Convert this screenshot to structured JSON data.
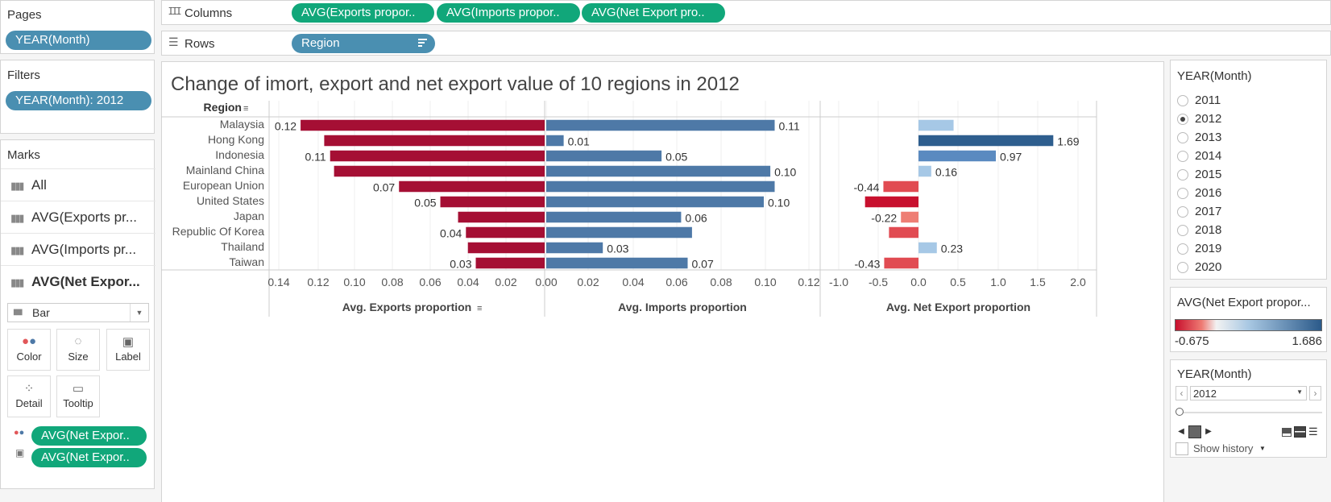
{
  "pages": {
    "header": "Pages",
    "pill": "YEAR(Month)"
  },
  "filters": {
    "header": "Filters",
    "pill": "YEAR(Month): 2012"
  },
  "marks": {
    "header": "Marks",
    "rows": [
      "All",
      "AVG(Exports pr...",
      "AVG(Imports pr...",
      "AVG(Net Expor..."
    ],
    "type": "Bar",
    "cards": [
      "Color",
      "Size",
      "Label",
      "Detail",
      "Tooltip"
    ],
    "pills": [
      "AVG(Net Expor..",
      "AVG(Net Expor.."
    ]
  },
  "shelves": {
    "columns_label": "Columns",
    "columns_pills": [
      "AVG(Exports propor..",
      "AVG(Imports propor..",
      "AVG(Net Export pro.."
    ],
    "rows_label": "Rows",
    "rows_pill": "Region"
  },
  "chart_data": {
    "type": "bar",
    "title": "Change of imort, export and net export value of  10  regions in 2012",
    "row_header": "Region",
    "categories": [
      "Malaysia",
      "Hong Kong",
      "Indonesia",
      "Mainland China",
      "European Union",
      "United States",
      "Japan",
      "Republic Of Korea",
      "Thailand",
      "Taiwan"
    ],
    "series": [
      {
        "name": "Avg. Exports proportion",
        "values": [
          0.124,
          0.112,
          0.109,
          0.107,
          0.074,
          0.053,
          0.044,
          0.04,
          0.039,
          0.035
        ],
        "labels": [
          "0.12",
          "",
          "0.11",
          "",
          "0.07",
          "0.05",
          "",
          "0.04",
          "",
          "0.03"
        ],
        "xlim": [
          0,
          0.14
        ],
        "ticks": [
          "0.14",
          "0.12",
          "0.10",
          "0.08",
          "0.06",
          "0.04",
          "0.02"
        ],
        "reversed": true
      },
      {
        "name": "Avg. Imports proportion",
        "values": [
          0.105,
          0.008,
          0.053,
          0.103,
          0.105,
          0.1,
          0.062,
          0.067,
          0.026,
          0.065
        ],
        "labels": [
          "0.11",
          "0.01",
          "0.05",
          "0.10",
          "",
          "0.10",
          "0.06",
          "",
          "0.03",
          "0.07"
        ],
        "xlim": [
          0,
          0.12
        ],
        "ticks": [
          "0.00",
          "0.02",
          "0.04",
          "0.06",
          "0.08",
          "0.10",
          "0.12"
        ]
      },
      {
        "name": "Avg. Net Export proportion",
        "values": [
          0.44,
          1.69,
          0.97,
          0.16,
          -0.44,
          -0.67,
          -0.22,
          -0.37,
          0.23,
          -0.43
        ],
        "labels": [
          "",
          "1.69",
          "0.97",
          "0.16",
          "-0.44",
          "",
          "-0.22",
          "",
          "0.23",
          "-0.43"
        ],
        "xlim": [
          -1.0,
          2.0
        ],
        "ticks": [
          "-1.0",
          "-0.5",
          "0.0",
          "0.5",
          "1.0",
          "1.5",
          "2.0"
        ]
      }
    ],
    "colors": {
      "exports": "#a50f34",
      "imports": "#4e79a7"
    },
    "grid": true
  },
  "legend_year": {
    "header": "YEAR(Month)",
    "options": [
      "2011",
      "2012",
      "2013",
      "2014",
      "2015",
      "2016",
      "2017",
      "2018",
      "2019",
      "2020"
    ],
    "selected": "2012"
  },
  "color_legend": {
    "header": "AVG(Net Export propor...",
    "min": "-0.675",
    "max": "1.686"
  },
  "page_control": {
    "header": "YEAR(Month)",
    "value": "2012",
    "show_history": "Show history"
  }
}
